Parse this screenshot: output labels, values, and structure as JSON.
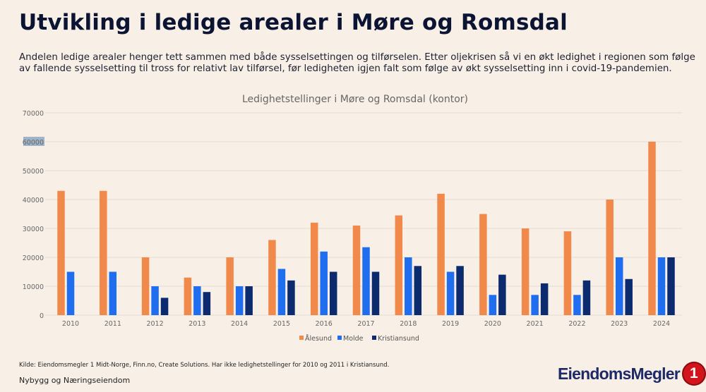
{
  "page": {
    "title": "Utvikling i ledige arealer i Møre og Romsdal",
    "intro": "Andelen ledige arealer henger tett sammen med både sysselsettingen og tilførselen. Etter oljekrisen så vi en økt ledighet i regionen som følge av fallende sysselsetting til tross for relativt lav tilførsel, før ledigheten igjen falt som følge av økt sysselsetting inn i covid-19-pandemien.",
    "source": "Kilde: Eiendomsmegler 1 Midt-Norge, Finn.no, Create Solutions. Har ikke ledighetstellinger for 2010 og 2011 i Kristiansund.",
    "footer": "Nybygg og Næringseiendom",
    "logo_text": "EiendomsMegler",
    "logo_badge": "1"
  },
  "chart_data": {
    "type": "bar",
    "title": "Ledighetstellinger i Møre og Romsdal (kontor)",
    "xlabel": "",
    "ylabel": "",
    "ylim": [
      0,
      70000
    ],
    "yticks": [
      0,
      10000,
      20000,
      30000,
      40000,
      50000,
      60000,
      70000
    ],
    "grid": true,
    "legend": "bottom",
    "categories": [
      "2010",
      "2011",
      "2012",
      "2013",
      "2014",
      "2015",
      "2016",
      "2017",
      "2018",
      "2019",
      "2020",
      "2021",
      "2022",
      "2023",
      "2024"
    ],
    "series": [
      {
        "name": "Ålesund",
        "color": "#f0894a",
        "values": [
          43000,
          43000,
          20000,
          13000,
          20000,
          26000,
          32000,
          31000,
          34500,
          42000,
          35000,
          30000,
          29000,
          40000,
          60000
        ]
      },
      {
        "name": "Molde",
        "color": "#1f6ef0",
        "values": [
          15000,
          15000,
          10000,
          10000,
          10000,
          16000,
          22000,
          23500,
          20000,
          15000,
          7000,
          7000,
          7000,
          20000,
          20000
        ]
      },
      {
        "name": "Kristiansund",
        "color": "#0c2a6e",
        "values": [
          null,
          null,
          6000,
          8000,
          10000,
          12000,
          15000,
          15000,
          17000,
          17000,
          14000,
          11000,
          12000,
          12500,
          20000
        ]
      }
    ]
  }
}
